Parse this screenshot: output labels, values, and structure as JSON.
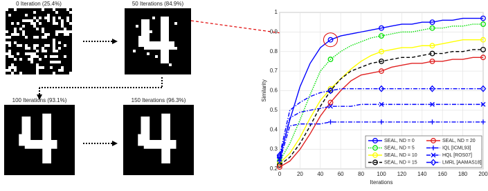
{
  "panels": [
    {
      "title": "0 Iteration (25.4%)"
    },
    {
      "title": "50 Iterations (84.9%)"
    },
    {
      "title": "100 Iterations (93.1%)"
    },
    {
      "title": "150 Iterations (96.3%)"
    }
  ],
  "chart_data": {
    "type": "line",
    "xlabel": "Iterations",
    "ylabel": "Similarity",
    "x": [
      0,
      10,
      20,
      30,
      40,
      50,
      60,
      70,
      80,
      90,
      100,
      110,
      120,
      130,
      140,
      150,
      160,
      170,
      180,
      190,
      200
    ],
    "xlim": [
      0,
      200
    ],
    "xticks": [
      0,
      20,
      40,
      60,
      80,
      100,
      120,
      140,
      160,
      180,
      200
    ],
    "ylim": [
      0.2,
      1
    ],
    "yticks": [
      0.2,
      0.3,
      0.4,
      0.5,
      0.6,
      0.7,
      0.8,
      0.9,
      1
    ],
    "grid": true,
    "legend": "lower-right",
    "series": [
      {
        "name": "SEAL, ND = 0",
        "color": "#0000ff",
        "dash": "solid",
        "marker": "circle",
        "values": [
          0.26,
          0.45,
          0.62,
          0.74,
          0.82,
          0.86,
          0.88,
          0.89,
          0.9,
          0.91,
          0.92,
          0.93,
          0.94,
          0.94,
          0.95,
          0.95,
          0.96,
          0.96,
          0.97,
          0.97,
          0.97
        ]
      },
      {
        "name": "SEAL, ND = 5",
        "color": "#00e000",
        "dash": "dotted",
        "marker": "circle",
        "values": [
          0.24,
          0.33,
          0.45,
          0.58,
          0.7,
          0.76,
          0.8,
          0.83,
          0.85,
          0.87,
          0.88,
          0.89,
          0.9,
          0.9,
          0.91,
          0.92,
          0.92,
          0.93,
          0.93,
          0.94,
          0.94
        ]
      },
      {
        "name": "SEAL, ND = 10",
        "color": "#ffff00",
        "dash": "solid",
        "marker": "circle",
        "values": [
          0.23,
          0.28,
          0.36,
          0.46,
          0.55,
          0.61,
          0.66,
          0.71,
          0.75,
          0.78,
          0.8,
          0.81,
          0.82,
          0.82,
          0.83,
          0.83,
          0.84,
          0.85,
          0.86,
          0.86,
          0.86
        ]
      },
      {
        "name": "SEAL, ND = 15",
        "color": "#000000",
        "dash": "dashed",
        "marker": "circle",
        "values": [
          0.22,
          0.26,
          0.33,
          0.42,
          0.52,
          0.6,
          0.66,
          0.7,
          0.72,
          0.74,
          0.75,
          0.76,
          0.77,
          0.77,
          0.78,
          0.79,
          0.79,
          0.8,
          0.8,
          0.81,
          0.81
        ]
      },
      {
        "name": "SEAL, ND = 20",
        "color": "#e02020",
        "dash": "solid",
        "marker": "circle",
        "values": [
          0.21,
          0.24,
          0.3,
          0.38,
          0.47,
          0.54,
          0.6,
          0.65,
          0.68,
          0.69,
          0.7,
          0.72,
          0.73,
          0.74,
          0.74,
          0.75,
          0.75,
          0.76,
          0.76,
          0.77,
          0.77
        ]
      },
      {
        "name": "IQL [ICML93]",
        "color": "#0000ff",
        "dash": "dashdot",
        "marker": "plus",
        "values": [
          0.24,
          0.42,
          0.43,
          0.43,
          0.43,
          0.44,
          0.44,
          0.44,
          0.44,
          0.44,
          0.44,
          0.44,
          0.44,
          0.44,
          0.44,
          0.44,
          0.44,
          0.44,
          0.44,
          0.44,
          0.44
        ]
      },
      {
        "name": "HQL [ROS07]",
        "color": "#0000ff",
        "dash": "dashdot",
        "marker": "x",
        "values": [
          0.25,
          0.46,
          0.49,
          0.5,
          0.51,
          0.52,
          0.52,
          0.52,
          0.53,
          0.53,
          0.53,
          0.53,
          0.53,
          0.53,
          0.53,
          0.53,
          0.53,
          0.53,
          0.53,
          0.53,
          0.53
        ]
      },
      {
        "name": "LMRL [AAMAS18]",
        "color": "#0000ff",
        "dash": "dashdot",
        "marker": "diamond",
        "values": [
          0.27,
          0.5,
          0.54,
          0.57,
          0.59,
          0.6,
          0.61,
          0.61,
          0.61,
          0.61,
          0.61,
          0.61,
          0.61,
          0.61,
          0.61,
          0.61,
          0.61,
          0.61,
          0.61,
          0.61,
          0.61
        ]
      }
    ]
  }
}
